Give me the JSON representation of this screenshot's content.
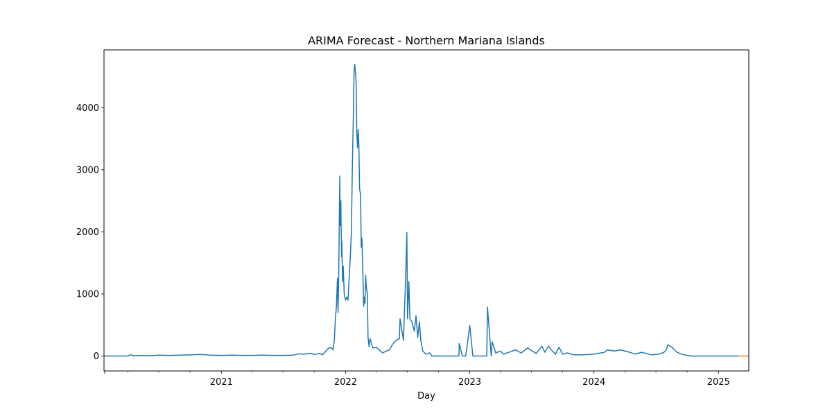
{
  "chart_data": {
    "type": "line",
    "title": "ARIMA Forecast - Northern Mariana Islands",
    "xlabel": "Day",
    "ylabel": "",
    "xlim": [
      "2020-01-22",
      "2025-03-31"
    ],
    "ylim": [
      -240,
      4930
    ],
    "x_ticks": [
      "2021",
      "2022",
      "2023",
      "2024",
      "2025"
    ],
    "y_ticks": [
      "0",
      "1000",
      "2000",
      "3000",
      "4000"
    ],
    "grid": false,
    "legend": "none",
    "colors": {
      "actual": "#1f77b4",
      "forecast": "#ff7f0e"
    },
    "series": [
      {
        "points": [
          [
            "2020-01-22",
            0
          ],
          [
            "2020-04-01",
            0
          ],
          [
            "2020-04-08",
            20
          ],
          [
            "2020-04-20",
            5
          ],
          [
            "2020-05-10",
            10
          ],
          [
            "2020-06-01",
            5
          ],
          [
            "2020-07-01",
            15
          ],
          [
            "2020-08-01",
            10
          ],
          [
            "2020-09-01",
            15
          ],
          [
            "2020-10-01",
            20
          ],
          [
            "2020-11-01",
            25
          ],
          [
            "2020-12-01",
            15
          ],
          [
            "2021-01-01",
            10
          ],
          [
            "2021-02-01",
            15
          ],
          [
            "2021-03-01",
            10
          ],
          [
            "2021-04-01",
            10
          ],
          [
            "2021-05-01",
            15
          ],
          [
            "2021-06-01",
            10
          ],
          [
            "2021-07-01",
            10
          ],
          [
            "2021-08-01",
            15
          ],
          [
            "2021-08-15",
            35
          ],
          [
            "2021-09-01",
            30
          ],
          [
            "2021-09-20",
            45
          ],
          [
            "2021-10-01",
            25
          ],
          [
            "2021-10-15",
            40
          ],
          [
            "2021-10-25",
            20
          ],
          [
            "2021-11-01",
            60
          ],
          [
            "2021-11-10",
            120
          ],
          [
            "2021-11-20",
            140
          ],
          [
            "2021-11-25",
            100
          ],
          [
            "2021-11-29",
            250
          ],
          [
            "2021-12-02",
            600
          ],
          [
            "2021-12-05",
            800
          ],
          [
            "2021-12-08",
            1250
          ],
          [
            "2021-12-10",
            700
          ],
          [
            "2021-12-12",
            1350
          ],
          [
            "2021-12-14",
            2450
          ],
          [
            "2021-12-15",
            2900
          ],
          [
            "2021-12-16",
            2100
          ],
          [
            "2021-12-18",
            2500
          ],
          [
            "2021-12-20",
            1600
          ],
          [
            "2021-12-21",
            1850
          ],
          [
            "2021-12-23",
            1200
          ],
          [
            "2021-12-25",
            1450
          ],
          [
            "2021-12-28",
            1000
          ],
          [
            "2022-01-01",
            900
          ],
          [
            "2022-01-05",
            950
          ],
          [
            "2022-01-08",
            900
          ],
          [
            "2022-01-12",
            1300
          ],
          [
            "2022-01-15",
            1600
          ],
          [
            "2022-01-18",
            2000
          ],
          [
            "2022-01-21",
            3100
          ],
          [
            "2022-01-24",
            3900
          ],
          [
            "2022-01-26",
            4600
          ],
          [
            "2022-01-28",
            4700
          ],
          [
            "2022-02-01",
            4400
          ],
          [
            "2022-02-03",
            3600
          ],
          [
            "2022-02-05",
            3350
          ],
          [
            "2022-02-07",
            3650
          ],
          [
            "2022-02-09",
            3400
          ],
          [
            "2022-02-11",
            2700
          ],
          [
            "2022-02-14",
            2600
          ],
          [
            "2022-02-16",
            1750
          ],
          [
            "2022-02-18",
            1900
          ],
          [
            "2022-02-20",
            1500
          ],
          [
            "2022-02-23",
            800
          ],
          [
            "2022-02-25",
            950
          ],
          [
            "2022-02-27",
            850
          ],
          [
            "2022-03-01",
            1300
          ],
          [
            "2022-03-03",
            1100
          ],
          [
            "2022-03-06",
            1000
          ],
          [
            "2022-03-08",
            300
          ],
          [
            "2022-03-11",
            150
          ],
          [
            "2022-03-14",
            280
          ],
          [
            "2022-03-22",
            130
          ],
          [
            "2022-04-01",
            140
          ],
          [
            "2022-04-10",
            100
          ],
          [
            "2022-04-20",
            50
          ],
          [
            "2022-05-01",
            80
          ],
          [
            "2022-05-10",
            100
          ],
          [
            "2022-05-18",
            180
          ],
          [
            "2022-05-25",
            230
          ],
          [
            "2022-06-01",
            260
          ],
          [
            "2022-06-08",
            280
          ],
          [
            "2022-06-10",
            600
          ],
          [
            "2022-06-20",
            250
          ],
          [
            "2022-06-27",
            1350
          ],
          [
            "2022-06-30",
            1990
          ],
          [
            "2022-07-02",
            600
          ],
          [
            "2022-07-06",
            1200
          ],
          [
            "2022-07-09",
            600
          ],
          [
            "2022-07-15",
            550
          ],
          [
            "2022-07-22",
            400
          ],
          [
            "2022-07-27",
            650
          ],
          [
            "2022-08-01",
            300
          ],
          [
            "2022-08-06",
            550
          ],
          [
            "2022-08-10",
            250
          ],
          [
            "2022-08-16",
            80
          ],
          [
            "2022-08-25",
            30
          ],
          [
            "2022-09-05",
            50
          ],
          [
            "2022-09-12",
            0
          ],
          [
            "2022-11-30",
            0
          ],
          [
            "2022-12-01",
            200
          ],
          [
            "2022-12-10",
            0
          ],
          [
            "2022-12-20",
            0
          ],
          [
            "2023-01-01",
            490
          ],
          [
            "2023-01-10",
            0
          ],
          [
            "2023-02-20",
            0
          ],
          [
            "2023-02-22",
            790
          ],
          [
            "2023-03-05",
            0
          ],
          [
            "2023-03-08",
            230
          ],
          [
            "2023-03-18",
            50
          ],
          [
            "2023-04-01",
            80
          ],
          [
            "2023-04-10",
            30
          ],
          [
            "2023-05-01",
            70
          ],
          [
            "2023-05-15",
            100
          ],
          [
            "2023-06-01",
            50
          ],
          [
            "2023-06-20",
            130
          ],
          [
            "2023-07-01",
            90
          ],
          [
            "2023-07-15",
            40
          ],
          [
            "2023-08-01",
            160
          ],
          [
            "2023-08-10",
            60
          ],
          [
            "2023-08-20",
            160
          ],
          [
            "2023-09-01",
            80
          ],
          [
            "2023-09-10",
            30
          ],
          [
            "2023-09-20",
            140
          ],
          [
            "2023-10-01",
            30
          ],
          [
            "2023-10-15",
            50
          ],
          [
            "2023-11-01",
            20
          ],
          [
            "2023-12-01",
            20
          ],
          [
            "2024-01-01",
            30
          ],
          [
            "2024-02-01",
            60
          ],
          [
            "2024-02-10",
            100
          ],
          [
            "2024-03-01",
            80
          ],
          [
            "2024-03-20",
            100
          ],
          [
            "2024-04-15",
            60
          ],
          [
            "2024-05-01",
            30
          ],
          [
            "2024-05-20",
            60
          ],
          [
            "2024-06-10",
            30
          ],
          [
            "2024-06-20",
            20
          ],
          [
            "2024-07-10",
            30
          ],
          [
            "2024-07-25",
            60
          ],
          [
            "2024-08-01",
            110
          ],
          [
            "2024-08-05",
            180
          ],
          [
            "2024-08-15",
            150
          ],
          [
            "2024-08-25",
            100
          ],
          [
            "2024-09-01",
            60
          ],
          [
            "2024-09-15",
            30
          ],
          [
            "2024-10-01",
            10
          ],
          [
            "2024-10-15",
            0
          ],
          [
            "2025-03-01",
            0
          ]
        ]
      },
      {
        "points": [
          [
            "2025-03-02",
            0
          ],
          [
            "2025-03-31",
            0
          ]
        ]
      }
    ]
  }
}
